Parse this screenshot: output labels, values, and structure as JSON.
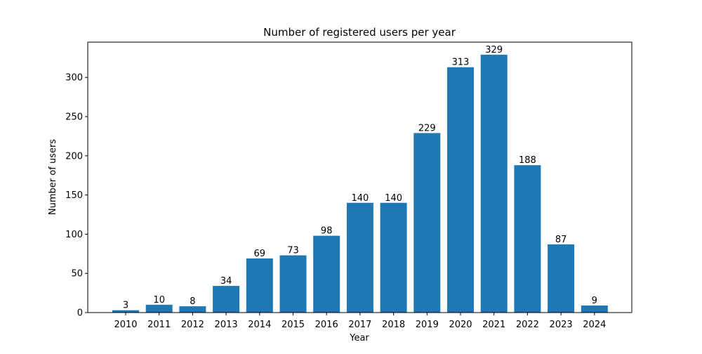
{
  "chart_data": {
    "type": "bar",
    "title": "Number of registered users per year",
    "xlabel": "Year",
    "ylabel": "Number of users",
    "categories": [
      "2010",
      "2011",
      "2012",
      "2013",
      "2014",
      "2015",
      "2016",
      "2017",
      "2018",
      "2019",
      "2020",
      "2021",
      "2022",
      "2023",
      "2024"
    ],
    "values": [
      3,
      10,
      8,
      34,
      69,
      73,
      98,
      140,
      140,
      229,
      313,
      329,
      188,
      87,
      9
    ],
    "ylim": [
      0,
      345
    ],
    "yticks": [
      "0",
      "50",
      "100",
      "150",
      "200",
      "250",
      "300"
    ],
    "bar_color": "#1f77b4",
    "grid": false,
    "legend": "none"
  }
}
